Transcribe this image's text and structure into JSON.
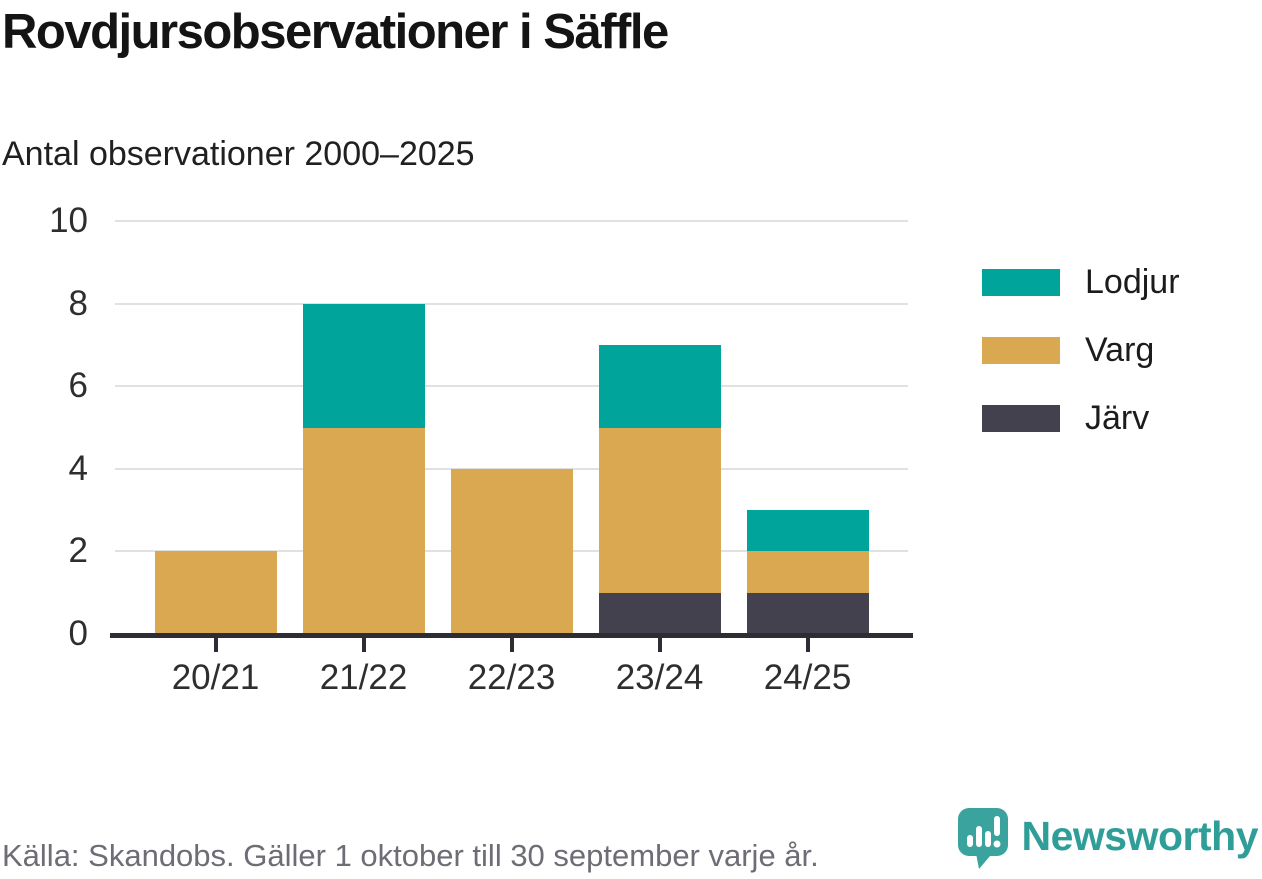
{
  "header": {
    "title": "Rovdjursobservationer i Säffle",
    "subtitle": "Antal observationer 2000–2025"
  },
  "chart_data": {
    "type": "bar",
    "stacked": true,
    "title": "Rovdjursobservationer i Säffle",
    "subtitle": "Antal observationer 2000–2025",
    "xlabel": "",
    "ylabel": "",
    "categories": [
      "20/21",
      "21/22",
      "22/23",
      "23/24",
      "24/25"
    ],
    "series": [
      {
        "name": "Lodjur",
        "color": "#00a49b",
        "values": [
          0,
          3,
          0,
          2,
          1
        ]
      },
      {
        "name": "Varg",
        "color": "#d9a850",
        "values": [
          2,
          5,
          4,
          4,
          1
        ]
      },
      {
        "name": "Järv",
        "color": "#43414e",
        "values": [
          0,
          0,
          0,
          1,
          1
        ]
      }
    ],
    "totals": [
      2,
      8,
      4,
      7,
      3
    ],
    "ylim": [
      0,
      10
    ],
    "yticks": [
      0,
      2,
      4,
      6,
      8,
      10
    ],
    "grid": true,
    "legend_position": "right"
  },
  "colors": {
    "lodjur": "#00a49b",
    "varg": "#d9a850",
    "jarv": "#43414e",
    "axis": "#2e2d33",
    "gridline": "#e1e1e1",
    "tick_text": "#2e2e2e",
    "source_text": "#6e6d76",
    "brand_teal": "#2f9e99"
  },
  "footer": {
    "source": "Källa: Skandobs. Gäller 1 oktober till 30 september varje år.",
    "brand": "Newsworthy"
  }
}
